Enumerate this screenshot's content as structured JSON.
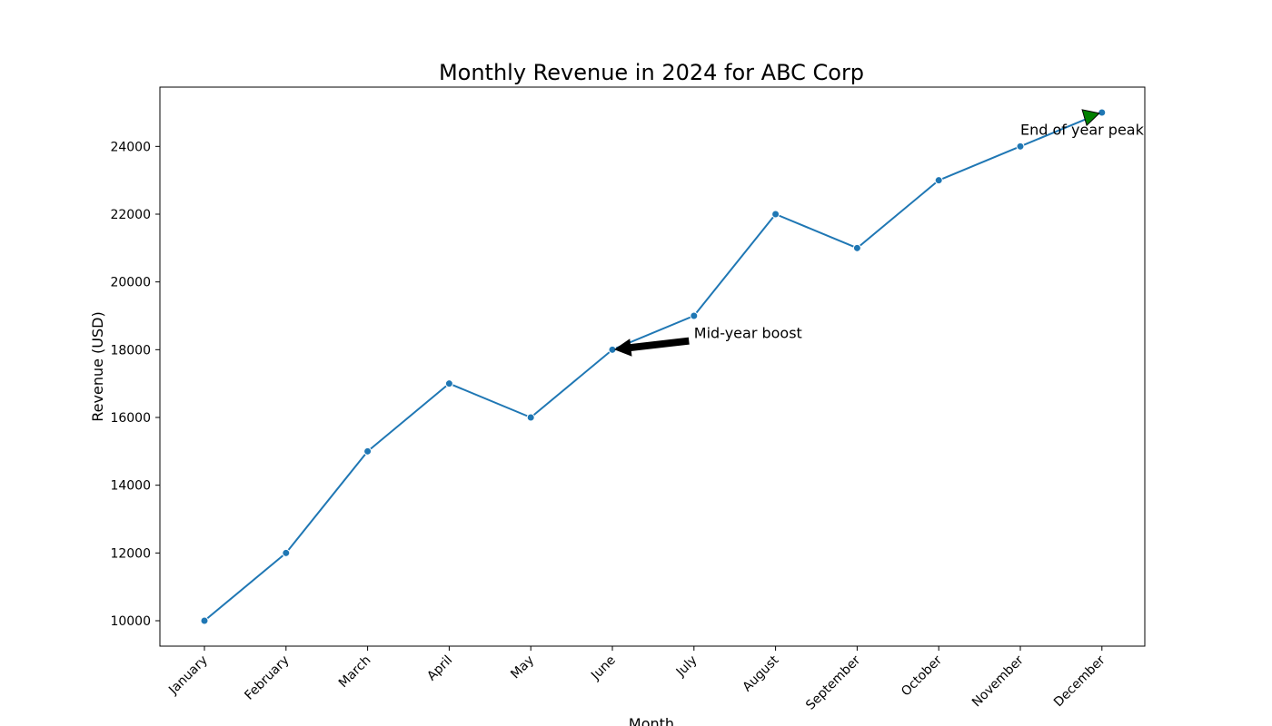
{
  "chart_data": {
    "type": "line",
    "title": "Monthly Revenue in 2024 for ABC Corp",
    "xlabel": "Month",
    "ylabel": "Revenue (USD)",
    "categories": [
      "January",
      "February",
      "March",
      "April",
      "May",
      "June",
      "July",
      "August",
      "September",
      "October",
      "November",
      "December"
    ],
    "series": [
      {
        "values": [
          10000,
          12000,
          15000,
          17000,
          16000,
          18000,
          19000,
          22000,
          21000,
          23000,
          24000,
          25000
        ],
        "color": "#1f77b4"
      }
    ],
    "ylim": [
      9250,
      25750
    ],
    "yticks": [
      10000,
      12000,
      14000,
      16000,
      18000,
      20000,
      22000,
      24000
    ],
    "grid": false,
    "legend": "none",
    "annotations": [
      {
        "text": "Mid-year boost",
        "target_category": "June",
        "target_value": 18000,
        "text_category": "July",
        "text_value": 18500,
        "arrow_color": "#000000"
      },
      {
        "text": "End of year peak",
        "target_category": "December",
        "target_value": 25000,
        "text_category": "November",
        "text_value": 24500,
        "arrow_color": "#008000"
      }
    ]
  }
}
